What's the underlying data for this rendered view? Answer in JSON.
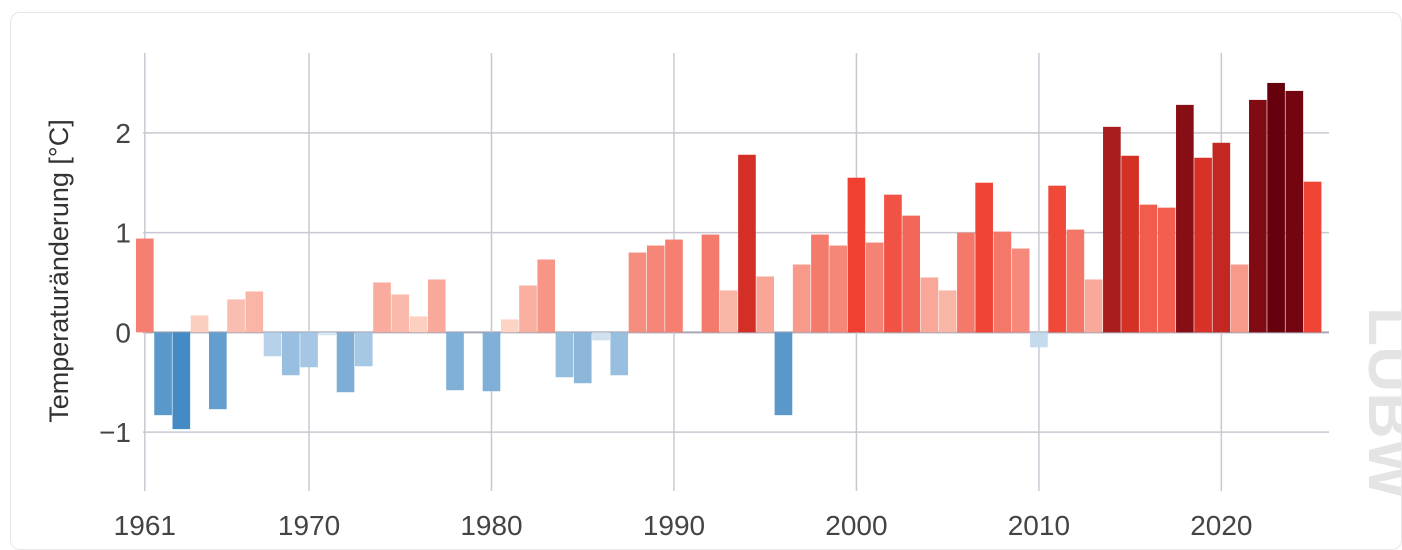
{
  "chart_data": {
    "type": "bar",
    "title": "",
    "ylabel": "Temperaturänderung [°C]",
    "xlabel": "",
    "x": [
      1961,
      1962,
      1963,
      1964,
      1965,
      1966,
      1967,
      1968,
      1969,
      1970,
      1971,
      1972,
      1973,
      1974,
      1975,
      1976,
      1977,
      1978,
      1979,
      1980,
      1981,
      1982,
      1983,
      1984,
      1985,
      1986,
      1987,
      1988,
      1989,
      1990,
      1991,
      1992,
      1993,
      1994,
      1995,
      1996,
      1997,
      1998,
      1999,
      2000,
      2001,
      2002,
      2003,
      2004,
      2005,
      2006,
      2007,
      2008,
      2009,
      2010,
      2011,
      2012,
      2013,
      2014,
      2015,
      2016,
      2017,
      2018,
      2019,
      2020,
      2021,
      2022,
      2023,
      2024,
      2025
    ],
    "values": [
      0.94,
      -0.83,
      -0.97,
      0.17,
      -0.77,
      0.33,
      0.41,
      -0.24,
      -0.43,
      -0.35,
      -0.03,
      -0.6,
      -0.34,
      0.5,
      0.38,
      0.16,
      0.53,
      -0.58,
      0.0,
      -0.59,
      0.13,
      0.47,
      0.73,
      -0.45,
      -0.51,
      -0.08,
      -0.43,
      0.8,
      0.87,
      0.93,
      0.0,
      0.98,
      0.42,
      1.78,
      0.56,
      -0.83,
      0.68,
      0.98,
      0.87,
      1.55,
      0.9,
      1.38,
      1.17,
      0.55,
      0.42,
      1.0,
      1.5,
      1.01,
      0.84,
      -0.15,
      1.47,
      1.03,
      0.53,
      2.06,
      1.77,
      1.28,
      1.25,
      2.28,
      1.75,
      1.9,
      0.68,
      2.33,
      2.5,
      2.42,
      1.51
    ],
    "xticks": [
      "1961",
      "1970",
      "1980",
      "1990",
      "2000",
      "2010",
      "2020"
    ],
    "yticks": [
      "−1",
      "0",
      "1",
      "2"
    ],
    "ylim": [
      -1.55,
      2.8
    ],
    "xlim": [
      1960.9,
      2025.9
    ],
    "grid": true,
    "legend": "none",
    "watermark": "LUBW",
    "colors": {
      "blue_dark": "#3f87c2",
      "blue_light": "#dce9f5",
      "red_light": "#fde0d2",
      "red_mid": "#ef3b2c",
      "red_dark": "#67000d",
      "grid": "#c8c8d2",
      "zero_line": "#a8a8b4"
    }
  }
}
